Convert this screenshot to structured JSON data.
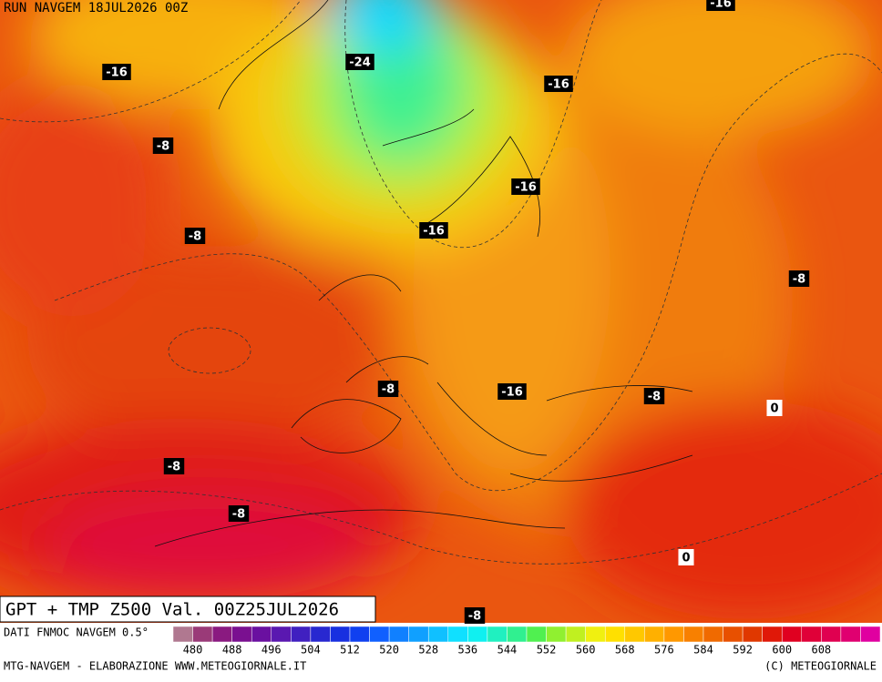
{
  "header": {
    "run": "RUN NAVGEM 18JUL2026 00Z"
  },
  "map": {
    "contour_labels": [
      "-16",
      "-16",
      "-24",
      "-16",
      "-8",
      "-16",
      "-8",
      "-16",
      "-8",
      "-8",
      "-16",
      "-8",
      "0",
      "-8",
      "-8",
      "0",
      "-8"
    ]
  },
  "title": "GPT + TMP Z500 Val. 00Z25JUL2026",
  "legend": {
    "source": "DATI FNMOC NAVGEM 0.5°",
    "colors": [
      "#b07890",
      "#9a3a78",
      "#8a1a80",
      "#7a1090",
      "#6a10a0",
      "#5a18b0",
      "#4020c0",
      "#2828d0",
      "#1830e0",
      "#1040f0",
      "#1060ff",
      "#1080ff",
      "#10a0ff",
      "#10c0ff",
      "#10e0ff",
      "#10f0f0",
      "#20f0c0",
      "#30f090",
      "#50f050",
      "#90f030",
      "#c0f020",
      "#f0f010",
      "#ffe000",
      "#ffc800",
      "#ffb000",
      "#ff9800",
      "#f88000",
      "#f06a00",
      "#e85000",
      "#e03800",
      "#e01808",
      "#e00020",
      "#e00038",
      "#e00050",
      "#e00070",
      "#e000a0"
    ],
    "ticks": [
      480,
      488,
      496,
      504,
      512,
      520,
      528,
      536,
      544,
      552,
      560,
      568,
      576,
      584,
      592,
      600,
      608
    ]
  },
  "footer": {
    "left": "MTG-NAVGEM - ELABORAZIONE WWW.METEOGIORNALE.IT",
    "right": "(C) METEOGIORNALE"
  }
}
